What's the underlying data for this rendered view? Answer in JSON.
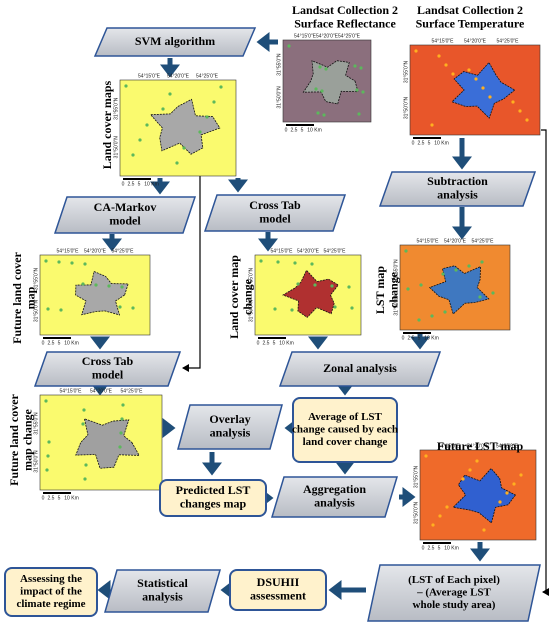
{
  "headers": [
    [
      "Landsat Collection 2",
      "Surface Reflectance"
    ],
    [
      "Landsat Collection 2",
      "Surface Temperature"
    ]
  ],
  "nodes": [
    {
      "label": [
        "SVM algorithm"
      ]
    },
    {
      "label": [
        "CA-Markov",
        "model"
      ]
    },
    {
      "label": [
        "Cross Tab",
        "model"
      ]
    },
    {
      "label": [
        "Subtraction",
        "analysis"
      ]
    },
    {
      "label": [
        "Cross Tab",
        "model"
      ]
    },
    {
      "label": [
        "Zonal analysis"
      ]
    },
    {
      "label": [
        "Overlay",
        "analysis"
      ]
    },
    {
      "label": [
        "Average of LST",
        "change caused by each",
        "land cover change"
      ]
    },
    {
      "label": [
        "Predicted LST",
        "changes map"
      ]
    },
    {
      "label": [
        "Aggregation",
        "analysis"
      ]
    },
    {
      "label": [
        "DSUHII",
        "assessment"
      ]
    },
    {
      "label": [
        "Statistical",
        "analysis"
      ]
    },
    {
      "label": [
        "Assessing the",
        "impact of the",
        "climate regime"
      ]
    },
    {
      "label": [
        "(LST of Each pixel)",
        "– (Average LST",
        "whole study area)"
      ]
    }
  ],
  "map_titles": [
    [
      "Land cover maps"
    ],
    [
      "Future land cover",
      "map"
    ],
    [
      "Land cover map",
      "change"
    ],
    [
      "LST map",
      "change"
    ],
    [
      "Future land cover",
      "map change"
    ],
    [
      "Future LST map"
    ]
  ],
  "maps": [
    {
      "lon": [
        "54°15'0\"E",
        "54°20'0\"E",
        "54°25'0\"E"
      ],
      "lat": [
        "31°55'0\"N",
        "31°50'0\"N"
      ],
      "scale": [
        "0",
        "2.5",
        "5",
        "10",
        "Km"
      ]
    },
    {
      "lon": [
        "54°15'0\"E",
        "54°20'0\"E",
        "54°25'0\"E"
      ],
      "lat": [
        "31°55'0\"N",
        "31°50'0\"N"
      ],
      "scale": [
        "0",
        "2.5",
        "5",
        "10",
        "Km"
      ]
    },
    {
      "lon": [
        "54°15'0\"E",
        "54°20'0\"E",
        "54°25'0\"E"
      ],
      "lat": [
        "31°55'0\"N",
        "31°50'0\"N"
      ],
      "scale": [
        "0",
        "2.5",
        "5",
        "10",
        "Km"
      ]
    },
    {
      "lon": [
        "54°15'0\"E",
        "54°20'0\"E",
        "54°25'0\"E"
      ],
      "lat": [
        "31°55'0\"N",
        "31°50'0\"N"
      ],
      "scale": [
        "0",
        "2.5",
        "5",
        "10",
        "Km"
      ]
    },
    {
      "lon": [
        "54°15'0\"E",
        "54°20'0\"E",
        "54°25'0\"E"
      ],
      "lat": [
        "31°55'0\"N",
        "31°50'0\"N"
      ],
      "scale": [
        "0",
        "2.5",
        "5",
        "10",
        "Km"
      ]
    },
    {
      "lon": [
        "54°15'0\"E",
        "54°20'0\"E",
        "54°25'0\"E"
      ],
      "lat": [
        "31°55'0\"N",
        "31°50'0\"N"
      ],
      "scale": [
        "0",
        "2.5",
        "5",
        "10",
        "Km"
      ]
    },
    {
      "lon": [
        "54°15'0\"E",
        "54°20'0\"E",
        "54°25'0\"E"
      ],
      "lat": [
        "31°55'0\"N",
        "31°50'0\"N"
      ],
      "scale": [
        "0",
        "2.5",
        "5",
        "10",
        "Km"
      ]
    },
    {
      "lon": [
        "54°15'0\"E",
        "54°20'0\"E",
        "54°25'0\"E"
      ],
      "lat": [
        "31°55'0\"N",
        "31°50'0\"N"
      ],
      "scale": [
        "0",
        "2.5",
        "5",
        "10",
        "Km"
      ]
    }
  ]
}
